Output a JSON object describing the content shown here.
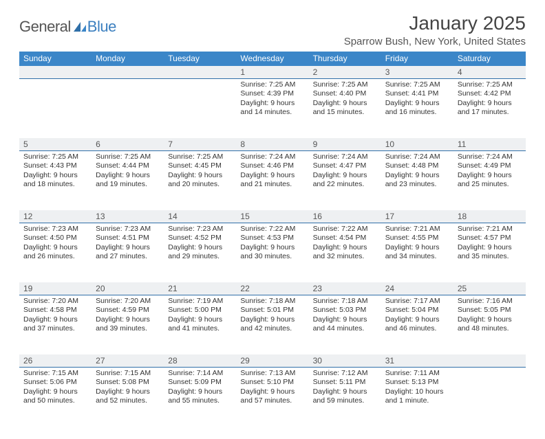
{
  "logo": {
    "general": "General",
    "blue": "Blue"
  },
  "title": "January 2025",
  "subtitle": "Sparrow Bush, New York, United States",
  "colors": {
    "header_bg": "#3b86c8",
    "daynum_bg": "#eef0f2",
    "rule": "#2f6fa8",
    "logo_blue": "#3b7fbf"
  },
  "day_names": [
    "Sunday",
    "Monday",
    "Tuesday",
    "Wednesday",
    "Thursday",
    "Friday",
    "Saturday"
  ],
  "weeks": [
    [
      {
        "d": "",
        "l": []
      },
      {
        "d": "",
        "l": []
      },
      {
        "d": "",
        "l": []
      },
      {
        "d": "1",
        "l": [
          "Sunrise: 7:25 AM",
          "Sunset: 4:39 PM",
          "Daylight: 9 hours",
          "and 14 minutes."
        ]
      },
      {
        "d": "2",
        "l": [
          "Sunrise: 7:25 AM",
          "Sunset: 4:40 PM",
          "Daylight: 9 hours",
          "and 15 minutes."
        ]
      },
      {
        "d": "3",
        "l": [
          "Sunrise: 7:25 AM",
          "Sunset: 4:41 PM",
          "Daylight: 9 hours",
          "and 16 minutes."
        ]
      },
      {
        "d": "4",
        "l": [
          "Sunrise: 7:25 AM",
          "Sunset: 4:42 PM",
          "Daylight: 9 hours",
          "and 17 minutes."
        ]
      }
    ],
    [
      {
        "d": "5",
        "l": [
          "Sunrise: 7:25 AM",
          "Sunset: 4:43 PM",
          "Daylight: 9 hours",
          "and 18 minutes."
        ]
      },
      {
        "d": "6",
        "l": [
          "Sunrise: 7:25 AM",
          "Sunset: 4:44 PM",
          "Daylight: 9 hours",
          "and 19 minutes."
        ]
      },
      {
        "d": "7",
        "l": [
          "Sunrise: 7:25 AM",
          "Sunset: 4:45 PM",
          "Daylight: 9 hours",
          "and 20 minutes."
        ]
      },
      {
        "d": "8",
        "l": [
          "Sunrise: 7:24 AM",
          "Sunset: 4:46 PM",
          "Daylight: 9 hours",
          "and 21 minutes."
        ]
      },
      {
        "d": "9",
        "l": [
          "Sunrise: 7:24 AM",
          "Sunset: 4:47 PM",
          "Daylight: 9 hours",
          "and 22 minutes."
        ]
      },
      {
        "d": "10",
        "l": [
          "Sunrise: 7:24 AM",
          "Sunset: 4:48 PM",
          "Daylight: 9 hours",
          "and 23 minutes."
        ]
      },
      {
        "d": "11",
        "l": [
          "Sunrise: 7:24 AM",
          "Sunset: 4:49 PM",
          "Daylight: 9 hours",
          "and 25 minutes."
        ]
      }
    ],
    [
      {
        "d": "12",
        "l": [
          "Sunrise: 7:23 AM",
          "Sunset: 4:50 PM",
          "Daylight: 9 hours",
          "and 26 minutes."
        ]
      },
      {
        "d": "13",
        "l": [
          "Sunrise: 7:23 AM",
          "Sunset: 4:51 PM",
          "Daylight: 9 hours",
          "and 27 minutes."
        ]
      },
      {
        "d": "14",
        "l": [
          "Sunrise: 7:23 AM",
          "Sunset: 4:52 PM",
          "Daylight: 9 hours",
          "and 29 minutes."
        ]
      },
      {
        "d": "15",
        "l": [
          "Sunrise: 7:22 AM",
          "Sunset: 4:53 PM",
          "Daylight: 9 hours",
          "and 30 minutes."
        ]
      },
      {
        "d": "16",
        "l": [
          "Sunrise: 7:22 AM",
          "Sunset: 4:54 PM",
          "Daylight: 9 hours",
          "and 32 minutes."
        ]
      },
      {
        "d": "17",
        "l": [
          "Sunrise: 7:21 AM",
          "Sunset: 4:55 PM",
          "Daylight: 9 hours",
          "and 34 minutes."
        ]
      },
      {
        "d": "18",
        "l": [
          "Sunrise: 7:21 AM",
          "Sunset: 4:57 PM",
          "Daylight: 9 hours",
          "and 35 minutes."
        ]
      }
    ],
    [
      {
        "d": "19",
        "l": [
          "Sunrise: 7:20 AM",
          "Sunset: 4:58 PM",
          "Daylight: 9 hours",
          "and 37 minutes."
        ]
      },
      {
        "d": "20",
        "l": [
          "Sunrise: 7:20 AM",
          "Sunset: 4:59 PM",
          "Daylight: 9 hours",
          "and 39 minutes."
        ]
      },
      {
        "d": "21",
        "l": [
          "Sunrise: 7:19 AM",
          "Sunset: 5:00 PM",
          "Daylight: 9 hours",
          "and 41 minutes."
        ]
      },
      {
        "d": "22",
        "l": [
          "Sunrise: 7:18 AM",
          "Sunset: 5:01 PM",
          "Daylight: 9 hours",
          "and 42 minutes."
        ]
      },
      {
        "d": "23",
        "l": [
          "Sunrise: 7:18 AM",
          "Sunset: 5:03 PM",
          "Daylight: 9 hours",
          "and 44 minutes."
        ]
      },
      {
        "d": "24",
        "l": [
          "Sunrise: 7:17 AM",
          "Sunset: 5:04 PM",
          "Daylight: 9 hours",
          "and 46 minutes."
        ]
      },
      {
        "d": "25",
        "l": [
          "Sunrise: 7:16 AM",
          "Sunset: 5:05 PM",
          "Daylight: 9 hours",
          "and 48 minutes."
        ]
      }
    ],
    [
      {
        "d": "26",
        "l": [
          "Sunrise: 7:15 AM",
          "Sunset: 5:06 PM",
          "Daylight: 9 hours",
          "and 50 minutes."
        ]
      },
      {
        "d": "27",
        "l": [
          "Sunrise: 7:15 AM",
          "Sunset: 5:08 PM",
          "Daylight: 9 hours",
          "and 52 minutes."
        ]
      },
      {
        "d": "28",
        "l": [
          "Sunrise: 7:14 AM",
          "Sunset: 5:09 PM",
          "Daylight: 9 hours",
          "and 55 minutes."
        ]
      },
      {
        "d": "29",
        "l": [
          "Sunrise: 7:13 AM",
          "Sunset: 5:10 PM",
          "Daylight: 9 hours",
          "and 57 minutes."
        ]
      },
      {
        "d": "30",
        "l": [
          "Sunrise: 7:12 AM",
          "Sunset: 5:11 PM",
          "Daylight: 9 hours",
          "and 59 minutes."
        ]
      },
      {
        "d": "31",
        "l": [
          "Sunrise: 7:11 AM",
          "Sunset: 5:13 PM",
          "Daylight: 10 hours",
          "and 1 minute."
        ]
      },
      {
        "d": "",
        "l": []
      }
    ]
  ]
}
